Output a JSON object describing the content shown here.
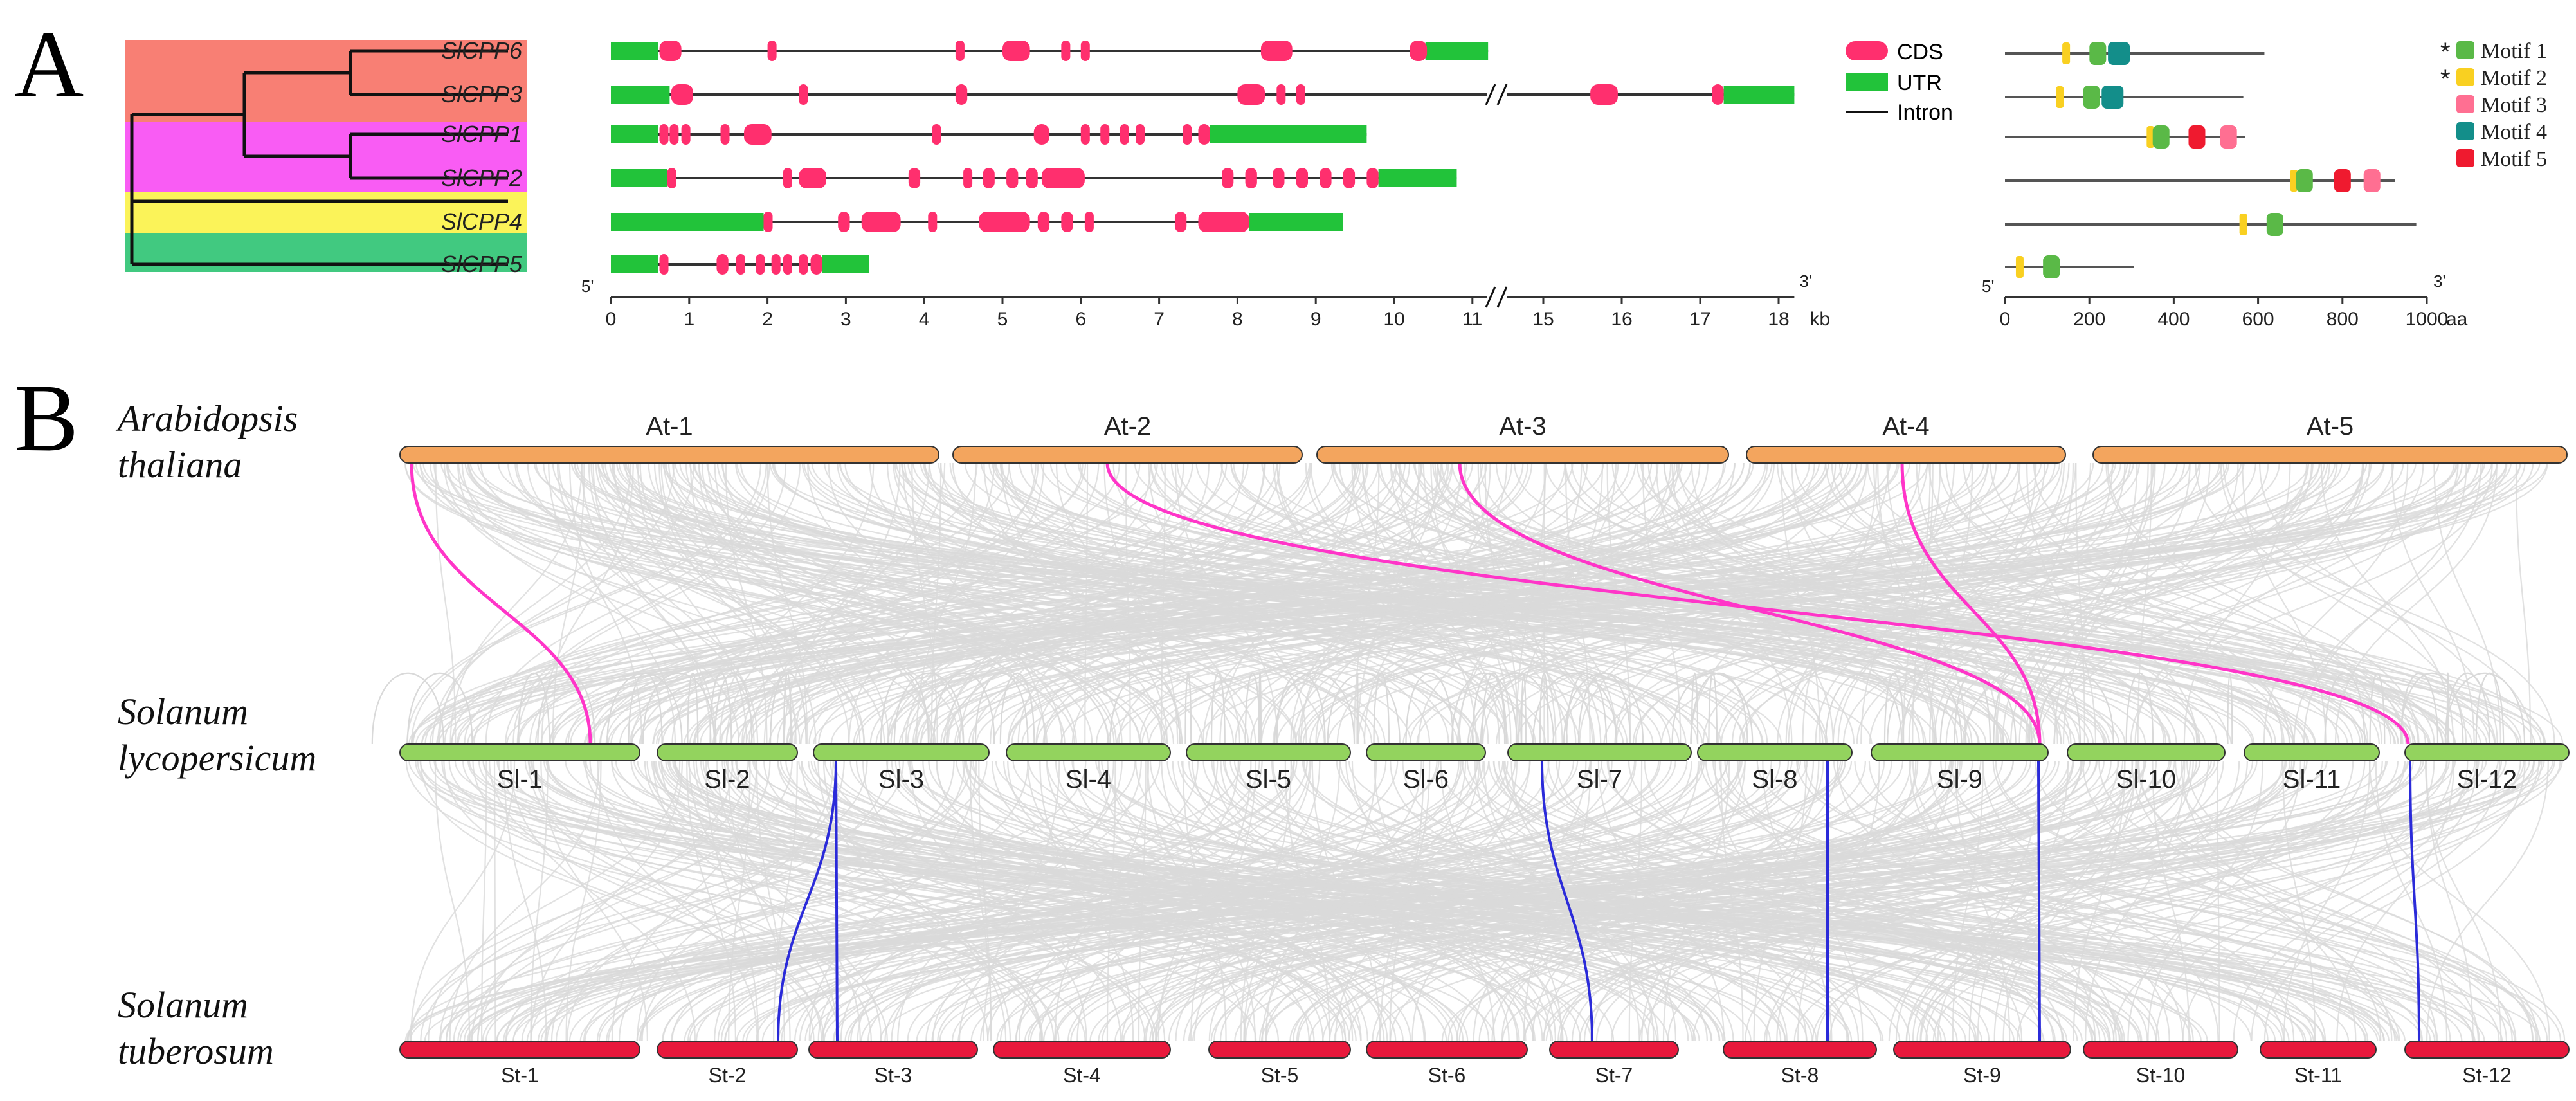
{
  "colors": {
    "cds": "#ff2f6e",
    "utr": "#22c33a",
    "intron": "#333333",
    "at_bar": "#f3a55e",
    "sl_bar": "#93d35e",
    "st_bar": "#e8193c",
    "synteny_bg": "#d9d9d9",
    "link_at_sl": "#ff35c8",
    "link_sl_st": "#2b2bd9",
    "clade1": "#f87f74",
    "clade2": "#f95cf4",
    "clade3": "#fbf359",
    "clade4": "#41c980",
    "motif1": "#5ab947",
    "motif2": "#f9d021",
    "motif3": "#ff6f92",
    "motif4": "#138e8a",
    "motif5": "#ef1a2f"
  },
  "panel_a": {
    "label": "A",
    "genes": [
      "SlCPP6",
      "SlCPP3",
      "SlCPP1",
      "SlCPP2",
      "SlCPP4",
      "SlCPP5"
    ],
    "legend": {
      "cds": "CDS",
      "utr": "UTR",
      "intron": "Intron"
    },
    "axis_kb": {
      "ticks": [
        "0",
        "1",
        "2",
        "3",
        "4",
        "5",
        "6",
        "7",
        "8",
        "9",
        "10",
        "11",
        "15",
        "16",
        "17",
        "18"
      ],
      "unit": "kb",
      "five_prime": "5'",
      "three_prime": "3'"
    },
    "motif_legend": [
      {
        "star": "*",
        "label": "Motif 1"
      },
      {
        "star": "*",
        "label": "Motif 2"
      },
      {
        "star": "",
        "label": "Motif 3"
      },
      {
        "star": "",
        "label": "Motif 4"
      },
      {
        "star": "",
        "label": "Motif 5"
      }
    ],
    "axis_aa": {
      "ticks": [
        "0",
        "200",
        "400",
        "600",
        "800",
        "1000"
      ],
      "unit": "aa",
      "five_prime": "5'",
      "three_prime": "3'"
    },
    "proteins_aa": [
      {
        "gene": "SlCPP6",
        "length": 615,
        "motifs": [
          {
            "m": 2,
            "pos": 145
          },
          {
            "m": 1,
            "pos": 220
          },
          {
            "m": 4,
            "pos": 270
          }
        ]
      },
      {
        "gene": "SlCPP3",
        "length": 565,
        "motifs": [
          {
            "m": 2,
            "pos": 130
          },
          {
            "m": 1,
            "pos": 205
          },
          {
            "m": 4,
            "pos": 255
          }
        ]
      },
      {
        "gene": "SlCPP1",
        "length": 570,
        "motifs": [
          {
            "m": 2,
            "pos": 345
          },
          {
            "m": 1,
            "pos": 370
          },
          {
            "m": 5,
            "pos": 455
          },
          {
            "m": 3,
            "pos": 530
          }
        ]
      },
      {
        "gene": "SlCPP2",
        "length": 925,
        "motifs": [
          {
            "m": 2,
            "pos": 685
          },
          {
            "m": 1,
            "pos": 710
          },
          {
            "m": 5,
            "pos": 800
          },
          {
            "m": 3,
            "pos": 870
          }
        ]
      },
      {
        "gene": "SlCPP4",
        "length": 975,
        "motifs": [
          {
            "m": 2,
            "pos": 565
          },
          {
            "m": 1,
            "pos": 640
          }
        ]
      },
      {
        "gene": "SlCPP5",
        "length": 305,
        "motifs": [
          {
            "m": 2,
            "pos": 35
          },
          {
            "m": 1,
            "pos": 110
          }
        ]
      }
    ]
  },
  "panel_b": {
    "label": "B",
    "species": [
      {
        "line1": "Arabidopsis",
        "line2": "thaliana"
      },
      {
        "line1": "Solanum",
        "line2": "lycopersicum"
      },
      {
        "line1": "Solanum",
        "line2": "tuberosum"
      }
    ],
    "at_chromosomes": [
      "At-1",
      "At-2",
      "At-3",
      "At-4",
      "At-5"
    ],
    "sl_chromosomes": [
      "Sl-1",
      "Sl-2",
      "Sl-3",
      "Sl-4",
      "Sl-5",
      "Sl-6",
      "Sl-7",
      "Sl-8",
      "Sl-9",
      "Sl-10",
      "Sl-11",
      "Sl-12"
    ],
    "st_chromosomes": [
      "St-1",
      "St-2",
      "St-3",
      "St-4",
      "St-5",
      "St-6",
      "St-7",
      "St-8",
      "St-9",
      "St-10",
      "St-11",
      "St-12"
    ],
    "links_at_sl": [
      [
        "At-1",
        "Sl-1"
      ],
      [
        "At-2",
        "Sl-12"
      ],
      [
        "At-3",
        "Sl-9"
      ],
      [
        "At-4",
        "Sl-9"
      ]
    ],
    "links_sl_st": [
      [
        "Sl-3",
        "St-2"
      ],
      [
        "Sl-3",
        "St-3"
      ],
      [
        "Sl-7",
        "St-7"
      ],
      [
        "Sl-8",
        "St-8"
      ],
      [
        "Sl-9",
        "St-9"
      ],
      [
        "Sl-12",
        "St-12"
      ]
    ]
  }
}
